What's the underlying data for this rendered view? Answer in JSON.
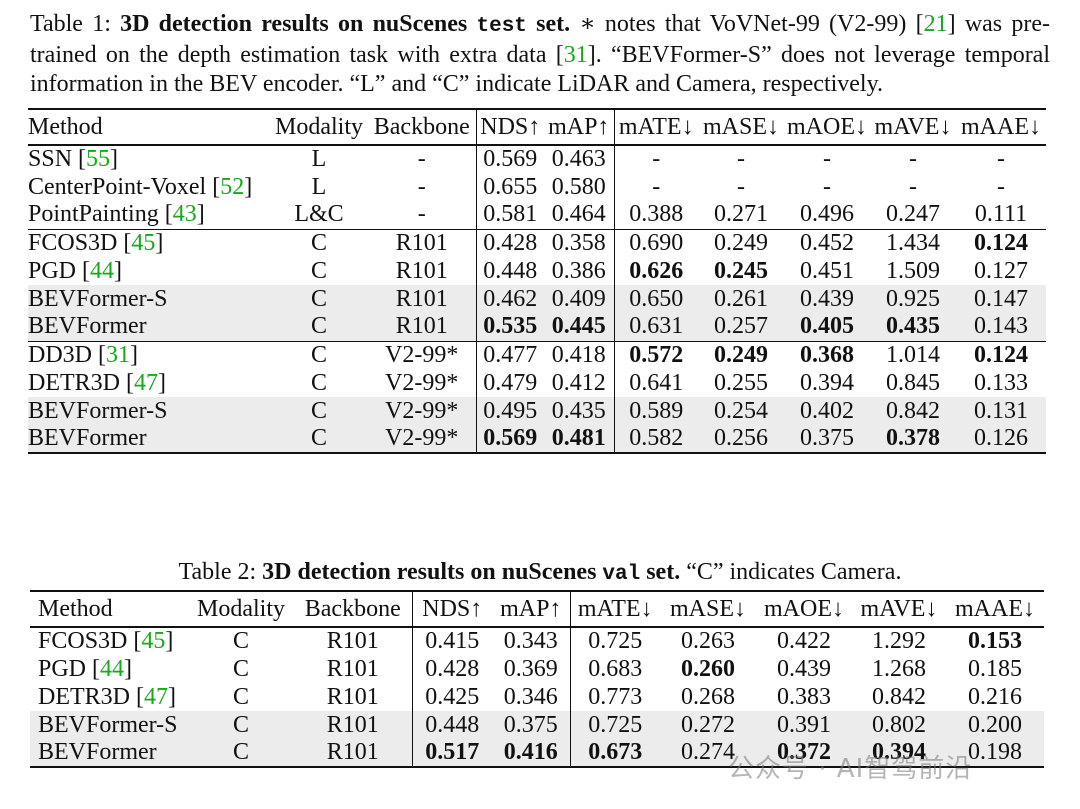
{
  "table1": {
    "caption": {
      "label": "Table 1:",
      "title_a": "3D detection results on nuScenes",
      "title_mono": "test",
      "title_b": "set.",
      "text_1": "∗ notes that VoVNet-99 (V2-99) [",
      "ref_1": "21",
      "text_2": "] was pre-trained on the depth estimation task with extra data [",
      "ref_2": "31",
      "text_3": "]. “BEVFormer-S” does not leverage temporal information in the BEV encoder. “L” and “C” indicate LiDAR and Camera, respectively."
    },
    "headers": [
      "Method",
      "Modality",
      "Backbone",
      "NDS↑",
      "mAP↑",
      "mATE↓",
      "mASE↓",
      "mAOE↓",
      "mAVE↓",
      "mAAE↓"
    ],
    "rows": [
      {
        "method": "SSN",
        "ref": "55",
        "modality": "L",
        "backbone": "-",
        "nds": "0.569",
        "map": "0.463",
        "mate": "-",
        "mase": "-",
        "maoe": "-",
        "mave": "-",
        "maae": "-"
      },
      {
        "method": "CenterPoint-Voxel",
        "ref": "52",
        "modality": "L",
        "backbone": "-",
        "nds": "0.655",
        "map": "0.580",
        "mate": "-",
        "mase": "-",
        "maoe": "-",
        "mave": "-",
        "maae": "-"
      },
      {
        "method": "PointPainting",
        "ref": "43",
        "modality": "L&C",
        "backbone": "-",
        "nds": "0.581",
        "map": "0.464",
        "mate": "0.388",
        "mase": "0.271",
        "maoe": "0.496",
        "mave": "0.247",
        "maae": "0.111"
      },
      {
        "method": "FCOS3D",
        "ref": "45",
        "modality": "C",
        "backbone": "R101",
        "nds": "0.428",
        "map": "0.358",
        "mate": "0.690",
        "mase": "0.249",
        "maoe": "0.452",
        "mave": "1.434",
        "maae": "0.124"
      },
      {
        "method": "PGD",
        "ref": "44",
        "modality": "C",
        "backbone": "R101",
        "nds": "0.448",
        "map": "0.386",
        "mate": "0.626",
        "mase": "0.245",
        "maoe": "0.451",
        "mave": "1.509",
        "maae": "0.127"
      },
      {
        "method": "BEVFormer-S",
        "ref": "",
        "modality": "C",
        "backbone": "R101",
        "nds": "0.462",
        "map": "0.409",
        "mate": "0.650",
        "mase": "0.261",
        "maoe": "0.439",
        "mave": "0.925",
        "maae": "0.147"
      },
      {
        "method": "BEVFormer",
        "ref": "",
        "modality": "C",
        "backbone": "R101",
        "nds": "0.535",
        "map": "0.445",
        "mate": "0.631",
        "mase": "0.257",
        "maoe": "0.405",
        "mave": "0.435",
        "maae": "0.143"
      },
      {
        "method": "DD3D",
        "ref": "31",
        "modality": "C",
        "backbone": "V2-99*",
        "nds": "0.477",
        "map": "0.418",
        "mate": "0.572",
        "mase": "0.249",
        "maoe": "0.368",
        "mave": "1.014",
        "maae": "0.124"
      },
      {
        "method": "DETR3D",
        "ref": "47",
        "modality": "C",
        "backbone": "V2-99*",
        "nds": "0.479",
        "map": "0.412",
        "mate": "0.641",
        "mase": "0.255",
        "maoe": "0.394",
        "mave": "0.845",
        "maae": "0.133"
      },
      {
        "method": "BEVFormer-S",
        "ref": "",
        "modality": "C",
        "backbone": "V2-99*",
        "nds": "0.495",
        "map": "0.435",
        "mate": "0.589",
        "mase": "0.254",
        "maoe": "0.402",
        "mave": "0.842",
        "maae": "0.131"
      },
      {
        "method": "BEVFormer",
        "ref": "",
        "modality": "C",
        "backbone": "V2-99*",
        "nds": "0.569",
        "map": "0.481",
        "mate": "0.582",
        "mase": "0.256",
        "maoe": "0.375",
        "mave": "0.378",
        "maae": "0.126"
      }
    ]
  },
  "table2": {
    "caption": {
      "label": "Table 2:",
      "title_a": "3D detection results on nuScenes",
      "title_mono": "val",
      "title_b": "set.",
      "text_1": "“C” indicates Camera."
    },
    "headers": [
      "Method",
      "Modality",
      "Backbone",
      "NDS↑",
      "mAP↑",
      "mATE↓",
      "mASE↓",
      "mAOE↓",
      "mAVE↓",
      "mAAE↓"
    ],
    "rows": [
      {
        "method": "FCOS3D",
        "ref": "45",
        "modality": "C",
        "backbone": "R101",
        "nds": "0.415",
        "map": "0.343",
        "mate": "0.725",
        "mase": "0.263",
        "maoe": "0.422",
        "mave": "1.292",
        "maae": "0.153"
      },
      {
        "method": "PGD",
        "ref": "44",
        "modality": "C",
        "backbone": "R101",
        "nds": "0.428",
        "map": "0.369",
        "mate": "0.683",
        "mase": "0.260",
        "maoe": "0.439",
        "mave": "1.268",
        "maae": "0.185"
      },
      {
        "method": "DETR3D",
        "ref": "47",
        "modality": "C",
        "backbone": "R101",
        "nds": "0.425",
        "map": "0.346",
        "mate": "0.773",
        "mase": "0.268",
        "maoe": "0.383",
        "mave": "0.842",
        "maae": "0.216"
      },
      {
        "method": "BEVFormer-S",
        "ref": "",
        "modality": "C",
        "backbone": "R101",
        "nds": "0.448",
        "map": "0.375",
        "mate": "0.725",
        "mase": "0.272",
        "maoe": "0.391",
        "mave": "0.802",
        "maae": "0.200"
      },
      {
        "method": "BEVFormer",
        "ref": "",
        "modality": "C",
        "backbone": "R101",
        "nds": "0.517",
        "map": "0.416",
        "mate": "0.673",
        "mase": "0.274",
        "maoe": "0.372",
        "mave": "0.394",
        "maae": "0.198"
      }
    ]
  },
  "watermark": "公众号 · AI智驾前沿"
}
